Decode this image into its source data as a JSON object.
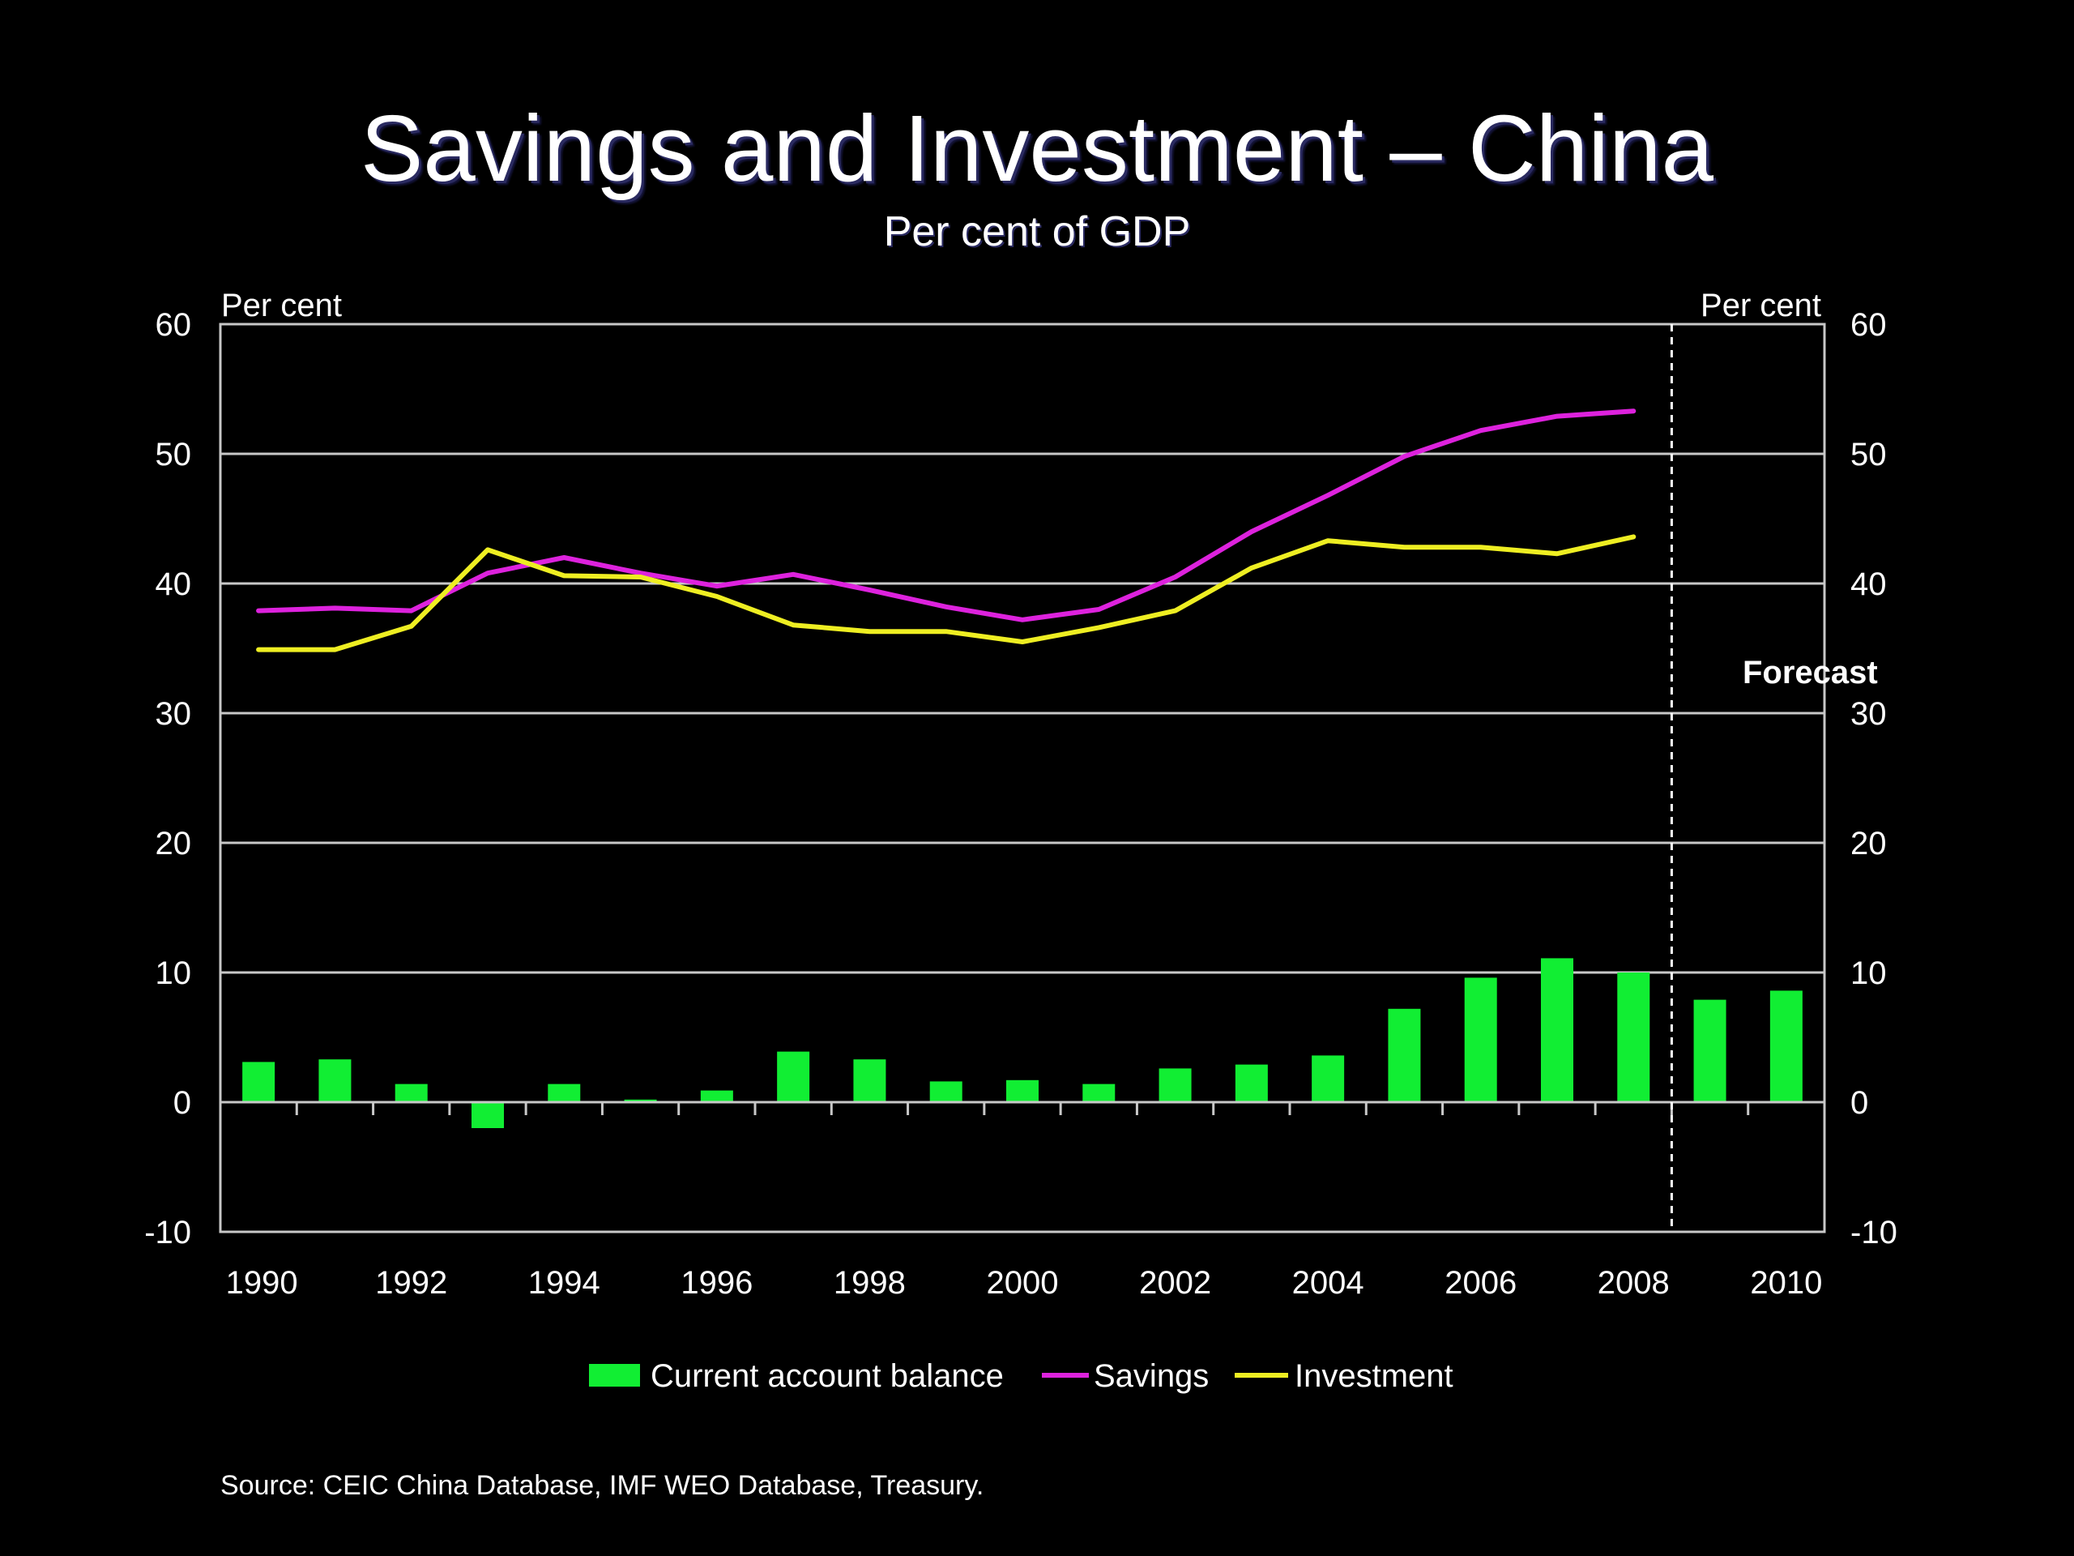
{
  "slide": {
    "title": "Savings and Investment – China",
    "subtitle": "Per cent of GDP",
    "source": "Source: CEIC China Database, IMF WEO Database, Treasury."
  },
  "colors": {
    "background": "#000000",
    "grid": "#c8c8c8",
    "current_account": "#11ee33",
    "savings": "#dd22dd",
    "investment": "#eeee22"
  },
  "chart_data": {
    "type": "bar+line",
    "title": "Savings and Investment – China",
    "subtitle": "Per cent of GDP",
    "ylabel_left": "Per cent",
    "ylabel_right": "Per cent",
    "ylim": [
      -10,
      60
    ],
    "yticks": [
      -10,
      0,
      10,
      20,
      30,
      40,
      50,
      60
    ],
    "xlim": [
      1990,
      2010
    ],
    "xtick_labels": [
      "1990",
      "1992",
      "1994",
      "1996",
      "1998",
      "2000",
      "2002",
      "2004",
      "2006",
      "2008",
      "2010"
    ],
    "grid": true,
    "forecast_label": "Forecast",
    "forecast_start": 2009,
    "legend_position": "bottom",
    "legend": [
      "Current account balance",
      "Savings",
      "Investment"
    ],
    "x": [
      1990,
      1991,
      1992,
      1993,
      1994,
      1995,
      1996,
      1997,
      1998,
      1999,
      2000,
      2001,
      2002,
      2003,
      2004,
      2005,
      2006,
      2007,
      2008,
      2009,
      2010
    ],
    "series": [
      {
        "name": "Current account balance",
        "type": "bar",
        "values": [
          3.1,
          3.3,
          1.4,
          -2.0,
          1.4,
          0.2,
          0.9,
          3.9,
          3.3,
          1.6,
          1.7,
          1.4,
          2.6,
          2.9,
          3.6,
          7.2,
          9.6,
          11.1,
          10.0,
          7.9,
          8.6
        ]
      },
      {
        "name": "Savings",
        "type": "line",
        "values": [
          37.9,
          38.1,
          37.9,
          40.8,
          42.0,
          40.8,
          39.8,
          40.7,
          39.5,
          38.2,
          37.2,
          38.0,
          40.5,
          44.0,
          46.8,
          49.8,
          51.8,
          52.9,
          53.3,
          null,
          null
        ]
      },
      {
        "name": "Investment",
        "type": "line",
        "values": [
          34.9,
          34.9,
          36.7,
          42.6,
          40.6,
          40.5,
          39.0,
          36.8,
          36.3,
          36.3,
          35.5,
          36.6,
          37.9,
          41.2,
          43.3,
          42.8,
          42.8,
          42.3,
          43.6,
          null,
          null
        ]
      }
    ]
  }
}
